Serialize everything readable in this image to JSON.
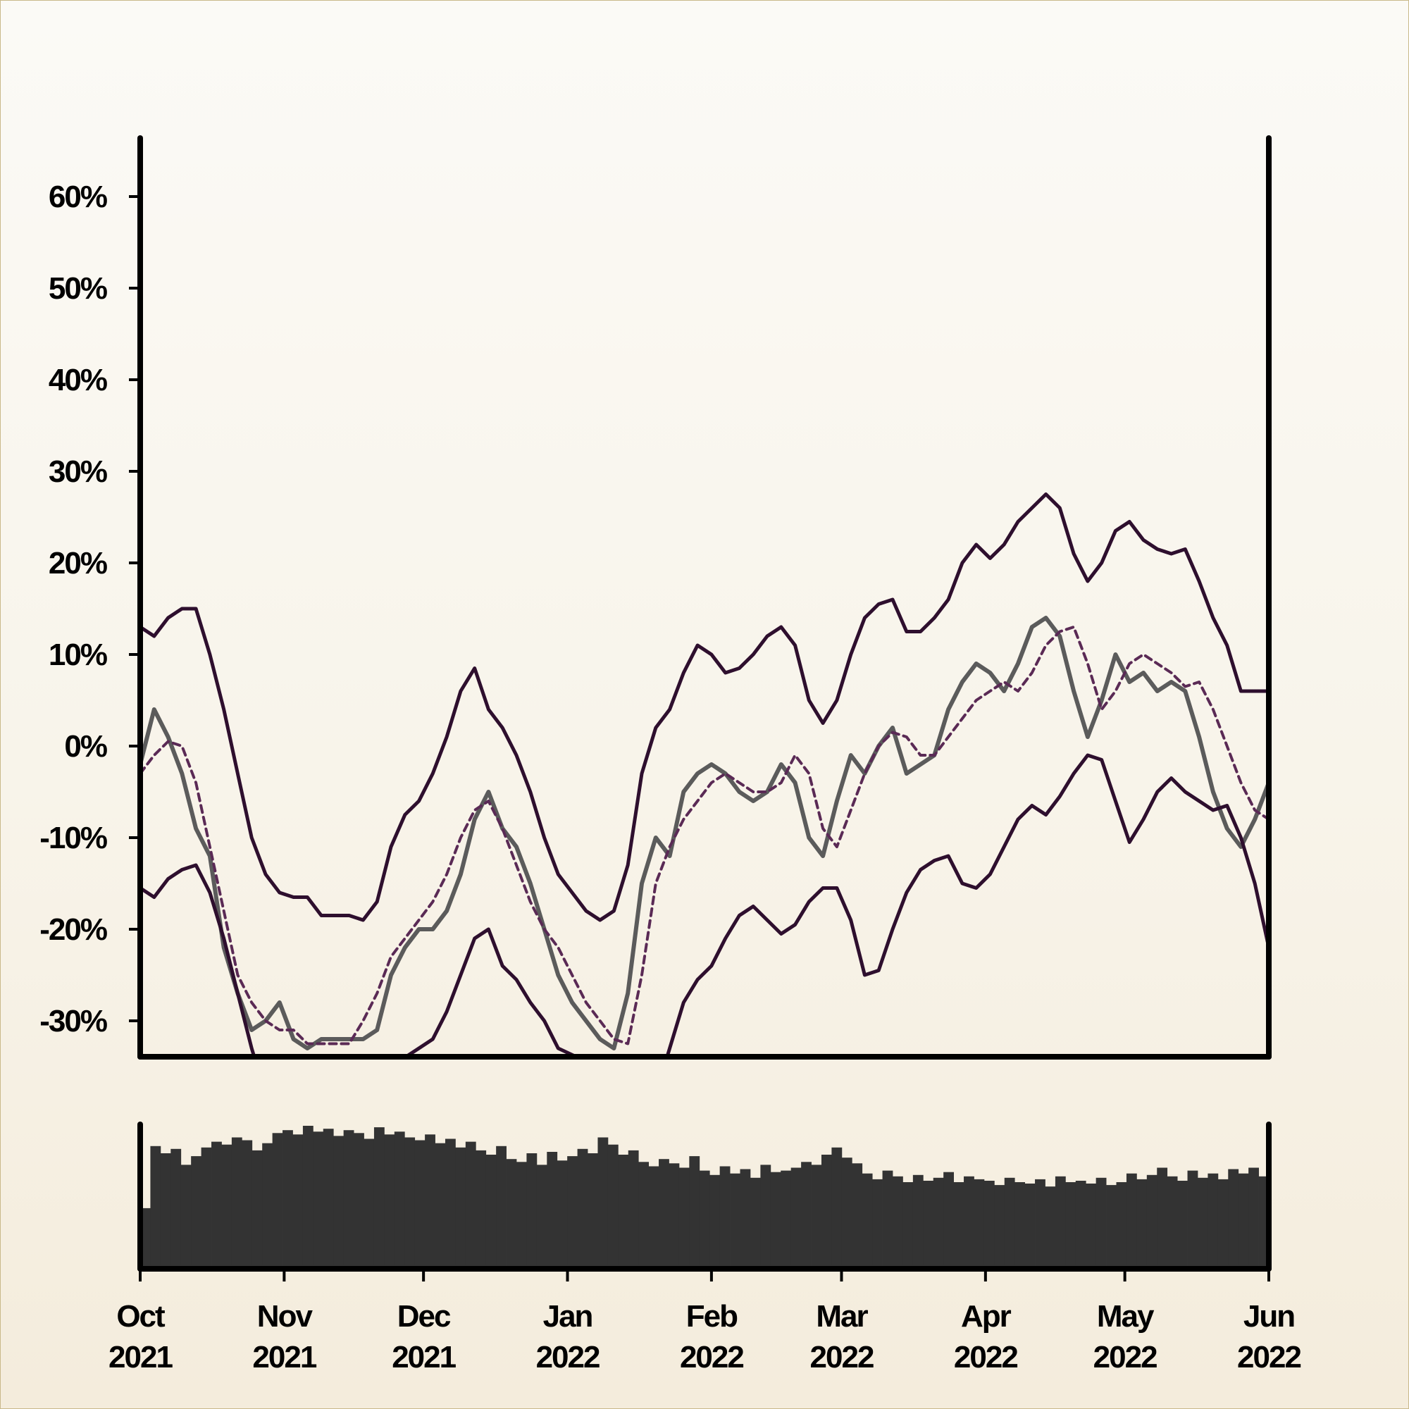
{
  "chart_data": [
    {
      "type": "line",
      "title": "",
      "xlabel": "",
      "ylabel": "",
      "ylim": [
        -34,
        66
      ],
      "xlim": [
        "2021-10-01",
        "2022-06-01"
      ],
      "grid": false,
      "legend": "none",
      "y_ticks": [
        {
          "value": 60,
          "label": "60%"
        },
        {
          "value": 50,
          "label": "50%"
        },
        {
          "value": 40,
          "label": "40%"
        },
        {
          "value": 30,
          "label": "30%"
        },
        {
          "value": 20,
          "label": "20%"
        },
        {
          "value": 10,
          "label": "10%"
        },
        {
          "value": 0,
          "label": "0%"
        },
        {
          "value": -10,
          "label": "-10%"
        },
        {
          "value": -20,
          "label": "-20%"
        },
        {
          "value": -30,
          "label": "-30%"
        }
      ],
      "x_ticks": [
        {
          "date": "2021-10-01",
          "month": "Oct",
          "year": "2021"
        },
        {
          "date": "2021-11-01",
          "month": "Nov",
          "year": "2021"
        },
        {
          "date": "2021-12-01",
          "month": "Dec",
          "year": "2021"
        },
        {
          "date": "2022-01-01",
          "month": "Jan",
          "year": "2022"
        },
        {
          "date": "2022-02-01",
          "month": "Feb",
          "year": "2022"
        },
        {
          "date": "2022-03-01",
          "month": "Mar",
          "year": "2022"
        },
        {
          "date": "2022-04-01",
          "month": "Apr",
          "year": "2022"
        },
        {
          "date": "2022-05-01",
          "month": "May",
          "year": "2022"
        },
        {
          "date": "2022-06-01",
          "month": "Jun",
          "year": "2022"
        }
      ],
      "colors": {
        "price": "#5b5b5b",
        "bands": "#2e0f2e",
        "middle": "#5a2a55"
      },
      "series": [
        {
          "role": "price",
          "style": "solid",
          "x": [
            "2021-10-01",
            "2021-10-04",
            "2021-10-07",
            "2021-10-10",
            "2021-10-13",
            "2021-10-16",
            "2021-10-19",
            "2021-10-22",
            "2021-10-25",
            "2021-10-28",
            "2021-10-31",
            "2021-11-03",
            "2021-11-06",
            "2021-11-09",
            "2021-11-12",
            "2021-11-15",
            "2021-11-18",
            "2021-11-21",
            "2021-11-24",
            "2021-11-27",
            "2021-11-30",
            "2021-12-03",
            "2021-12-06",
            "2021-12-09",
            "2021-12-12",
            "2021-12-15",
            "2021-12-18",
            "2021-12-21",
            "2021-12-24",
            "2021-12-27",
            "2021-12-30",
            "2022-01-02",
            "2022-01-05",
            "2022-01-08",
            "2022-01-11",
            "2022-01-14",
            "2022-01-17",
            "2022-01-20",
            "2022-01-23",
            "2022-01-26",
            "2022-01-29",
            "2022-02-01",
            "2022-02-04",
            "2022-02-07",
            "2022-02-10",
            "2022-02-13",
            "2022-02-16",
            "2022-02-19",
            "2022-02-22",
            "2022-02-25",
            "2022-02-28",
            "2022-03-03",
            "2022-03-06",
            "2022-03-09",
            "2022-03-12",
            "2022-03-15",
            "2022-03-18",
            "2022-03-21",
            "2022-03-24",
            "2022-03-27",
            "2022-03-30",
            "2022-04-02",
            "2022-04-05",
            "2022-04-08",
            "2022-04-11",
            "2022-04-14",
            "2022-04-17",
            "2022-04-20",
            "2022-04-23",
            "2022-04-26",
            "2022-04-29",
            "2022-05-02",
            "2022-05-05",
            "2022-05-08",
            "2022-05-11",
            "2022-05-14",
            "2022-05-17",
            "2022-05-20",
            "2022-05-23",
            "2022-05-26",
            "2022-05-29",
            "2022-06-01"
          ],
          "y": [
            -2,
            4,
            1,
            -3,
            -9,
            -12,
            -22,
            -27,
            -31,
            -30,
            -28,
            -32,
            -33,
            -32,
            -32,
            -32,
            -32,
            -31,
            -25,
            -22,
            -20,
            -20,
            -18,
            -14,
            -8,
            -5,
            -9,
            -11,
            -15,
            -20,
            -25,
            -28,
            -30,
            -32,
            -33,
            -27,
            -15,
            -10,
            -12,
            -5,
            -3,
            -2,
            -3,
            -5,
            -6,
            -5,
            -2,
            -4,
            -10,
            -12,
            -6,
            -1,
            -3,
            0,
            2,
            -3,
            -2,
            -1,
            4,
            7,
            9,
            8,
            6,
            9,
            13,
            14,
            12,
            6,
            1,
            5,
            10,
            7,
            8,
            6,
            7,
            6,
            1,
            -5,
            -9,
            -11,
            -8,
            -4
          ]
        },
        {
          "role": "middle",
          "style": "dashed",
          "x": [
            "2021-10-01",
            "2021-10-04",
            "2021-10-07",
            "2021-10-10",
            "2021-10-13",
            "2021-10-16",
            "2021-10-19",
            "2021-10-22",
            "2021-10-25",
            "2021-10-28",
            "2021-10-31",
            "2021-11-03",
            "2021-11-06",
            "2021-11-09",
            "2021-11-12",
            "2021-11-15",
            "2021-11-18",
            "2021-11-21",
            "2021-11-24",
            "2021-11-27",
            "2021-11-30",
            "2021-12-03",
            "2021-12-06",
            "2021-12-09",
            "2021-12-12",
            "2021-12-15",
            "2021-12-18",
            "2021-12-21",
            "2021-12-24",
            "2021-12-27",
            "2021-12-30",
            "2022-01-02",
            "2022-01-05",
            "2022-01-08",
            "2022-01-11",
            "2022-01-14",
            "2022-01-17",
            "2022-01-20",
            "2022-01-23",
            "2022-01-26",
            "2022-01-29",
            "2022-02-01",
            "2022-02-04",
            "2022-02-07",
            "2022-02-10",
            "2022-02-13",
            "2022-02-16",
            "2022-02-19",
            "2022-02-22",
            "2022-02-25",
            "2022-02-28",
            "2022-03-03",
            "2022-03-06",
            "2022-03-09",
            "2022-03-12",
            "2022-03-15",
            "2022-03-18",
            "2022-03-21",
            "2022-03-24",
            "2022-03-27",
            "2022-03-30",
            "2022-04-02",
            "2022-04-05",
            "2022-04-08",
            "2022-04-11",
            "2022-04-14",
            "2022-04-17",
            "2022-04-20",
            "2022-04-23",
            "2022-04-26",
            "2022-04-29",
            "2022-05-02",
            "2022-05-05",
            "2022-05-08",
            "2022-05-11",
            "2022-05-14",
            "2022-05-17",
            "2022-05-20",
            "2022-05-23",
            "2022-05-26",
            "2022-05-29",
            "2022-06-01"
          ],
          "y": [
            -3,
            -1,
            0.5,
            0,
            -4,
            -11,
            -18,
            -25,
            -28,
            -30,
            -31,
            -31,
            -32.5,
            -32.5,
            -32.5,
            -32.5,
            -30,
            -27,
            -23,
            -21,
            -19,
            -17,
            -14,
            -10,
            -7,
            -6,
            -9,
            -13,
            -17,
            -20,
            -22,
            -25,
            -28,
            -30,
            -32,
            -32.5,
            -25,
            -15,
            -11,
            -8,
            -6,
            -4,
            -3,
            -4,
            -5,
            -5,
            -4,
            -1,
            -3,
            -9,
            -11,
            -7,
            -3,
            0,
            1.5,
            1,
            -1,
            -1,
            1,
            3,
            5,
            6,
            7,
            6,
            8,
            11,
            12.5,
            13,
            9,
            4,
            6,
            9,
            10,
            9,
            8,
            6.5,
            7,
            4,
            0,
            -4,
            -7,
            -8
          ]
        },
        {
          "role": "upper-band",
          "style": "solid",
          "x": [
            "2021-10-01",
            "2021-10-04",
            "2021-10-07",
            "2021-10-10",
            "2021-10-13",
            "2021-10-16",
            "2021-10-19",
            "2021-10-22",
            "2021-10-25",
            "2021-10-28",
            "2021-10-31",
            "2021-11-03",
            "2021-11-06",
            "2021-11-09",
            "2021-11-12",
            "2021-11-15",
            "2021-11-18",
            "2021-11-21",
            "2021-11-24",
            "2021-11-27",
            "2021-11-30",
            "2021-12-03",
            "2021-12-06",
            "2021-12-09",
            "2021-12-12",
            "2021-12-15",
            "2021-12-18",
            "2021-12-21",
            "2021-12-24",
            "2021-12-27",
            "2021-12-30",
            "2022-01-02",
            "2022-01-05",
            "2022-01-08",
            "2022-01-11",
            "2022-01-14",
            "2022-01-17",
            "2022-01-20",
            "2022-01-23",
            "2022-01-26",
            "2022-01-29",
            "2022-02-01",
            "2022-02-04",
            "2022-02-07",
            "2022-02-10",
            "2022-02-13",
            "2022-02-16",
            "2022-02-19",
            "2022-02-22",
            "2022-02-25",
            "2022-02-28",
            "2022-03-03",
            "2022-03-06",
            "2022-03-09",
            "2022-03-12",
            "2022-03-15",
            "2022-03-18",
            "2022-03-21",
            "2022-03-24",
            "2022-03-27",
            "2022-03-30",
            "2022-04-02",
            "2022-04-05",
            "2022-04-08",
            "2022-04-11",
            "2022-04-14",
            "2022-04-17",
            "2022-04-20",
            "2022-04-23",
            "2022-04-26",
            "2022-04-29",
            "2022-05-02",
            "2022-05-05",
            "2022-05-08",
            "2022-05-11",
            "2022-05-14",
            "2022-05-17",
            "2022-05-20",
            "2022-05-23",
            "2022-05-26",
            "2022-05-29",
            "2022-06-01"
          ],
          "y": [
            13,
            12,
            14,
            15,
            15,
            10,
            4,
            -3,
            -10,
            -14,
            -16,
            -16.5,
            -16.5,
            -18.5,
            -18.5,
            -18.5,
            -19,
            -17,
            -11,
            -7.5,
            -6,
            -3,
            1,
            6,
            8.5,
            4,
            2,
            -1,
            -5,
            -10,
            -14,
            -16,
            -18,
            -19,
            -18,
            -13,
            -3,
            2,
            4,
            8,
            11,
            10,
            8,
            8.5,
            10,
            12,
            13,
            11,
            5,
            2.5,
            5,
            10,
            14,
            15.5,
            16,
            12.5,
            12.5,
            14,
            16,
            20,
            22,
            20.5,
            22,
            24.5,
            26,
            27.5,
            26,
            21,
            18,
            20,
            23.5,
            24.5,
            22.5,
            21.5,
            21,
            21.5,
            18,
            14,
            11,
            6,
            6,
            6
          ]
        },
        {
          "role": "lower-band",
          "style": "solid",
          "x": [
            "2021-10-01",
            "2021-10-04",
            "2021-10-07",
            "2021-10-10",
            "2021-10-13",
            "2021-10-16",
            "2021-10-19",
            "2021-10-22",
            "2021-10-25",
            "2021-10-28",
            "2021-11-24",
            "2021-11-27",
            "2021-11-30",
            "2021-12-03",
            "2021-12-06",
            "2021-12-09",
            "2021-12-12",
            "2021-12-15",
            "2021-12-18",
            "2021-12-21",
            "2021-12-24",
            "2021-12-27",
            "2021-12-30",
            "2022-01-20",
            "2022-01-23",
            "2022-01-26",
            "2022-01-29",
            "2022-02-01",
            "2022-02-04",
            "2022-02-07",
            "2022-02-10",
            "2022-02-13",
            "2022-02-16",
            "2022-02-19",
            "2022-02-22",
            "2022-02-25",
            "2022-02-28",
            "2022-03-03",
            "2022-03-06",
            "2022-03-09",
            "2022-03-12",
            "2022-03-15",
            "2022-03-18",
            "2022-03-21",
            "2022-03-24",
            "2022-03-27",
            "2022-03-30",
            "2022-04-02",
            "2022-04-05",
            "2022-04-08",
            "2022-04-11",
            "2022-04-14",
            "2022-04-17",
            "2022-04-20",
            "2022-04-23",
            "2022-04-26",
            "2022-04-29",
            "2022-05-02",
            "2022-05-05",
            "2022-05-08",
            "2022-05-11",
            "2022-05-14",
            "2022-05-17",
            "2022-05-20",
            "2022-05-23",
            "2022-05-26",
            "2022-05-29",
            "2022-06-01"
          ],
          "y": [
            -15.5,
            -16.5,
            -14.5,
            -13.5,
            -13,
            -16,
            -21,
            -27,
            -33,
            -38,
            -38,
            -34,
            -33,
            -32,
            -29,
            -25,
            -21,
            -20,
            -24,
            -25.5,
            -28,
            -30,
            -33,
            -38,
            -33,
            -28,
            -25.5,
            -24,
            -21,
            -18.5,
            -17.5,
            -19,
            -20.5,
            -19.5,
            -17,
            -15.5,
            -15.5,
            -19,
            -25,
            -24.5,
            -20,
            -16,
            -13.5,
            -12.5,
            -12,
            -15,
            -15.5,
            -14,
            -11,
            -8,
            -6.5,
            -7.5,
            -5.5,
            -3,
            -1,
            -1.5,
            -6,
            -10.5,
            -8,
            -5,
            -3.5,
            -5,
            -6,
            -7,
            -6.5,
            -10,
            -15,
            -22
          ]
        }
      ],
      "volume": {
        "x_start": "2021-10-01",
        "x_end": "2022-06-01",
        "values": [
          0.42,
          0.85,
          0.8,
          0.83,
          0.72,
          0.78,
          0.84,
          0.88,
          0.86,
          0.91,
          0.89,
          0.82,
          0.87,
          0.94,
          0.96,
          0.93,
          0.99,
          0.95,
          0.97,
          0.92,
          0.96,
          0.94,
          0.9,
          0.98,
          0.93,
          0.95,
          0.91,
          0.89,
          0.93,
          0.87,
          0.9,
          0.84,
          0.88,
          0.82,
          0.79,
          0.85,
          0.76,
          0.74,
          0.8,
          0.72,
          0.81,
          0.75,
          0.78,
          0.83,
          0.8,
          0.91,
          0.86,
          0.79,
          0.82,
          0.74,
          0.71,
          0.76,
          0.73,
          0.7,
          0.78,
          0.68,
          0.65,
          0.71,
          0.66,
          0.69,
          0.63,
          0.72,
          0.67,
          0.68,
          0.7,
          0.74,
          0.72,
          0.79,
          0.84,
          0.77,
          0.73,
          0.66,
          0.62,
          0.68,
          0.64,
          0.6,
          0.65,
          0.61,
          0.63,
          0.67,
          0.6,
          0.64,
          0.62,
          0.61,
          0.58,
          0.63,
          0.6,
          0.59,
          0.62,
          0.57,
          0.64,
          0.6,
          0.61,
          0.59,
          0.63,
          0.58,
          0.6,
          0.66,
          0.62,
          0.65,
          0.7,
          0.64,
          0.61,
          0.68,
          0.63,
          0.66,
          0.62,
          0.69,
          0.66,
          0.7,
          0.64
        ]
      }
    }
  ]
}
